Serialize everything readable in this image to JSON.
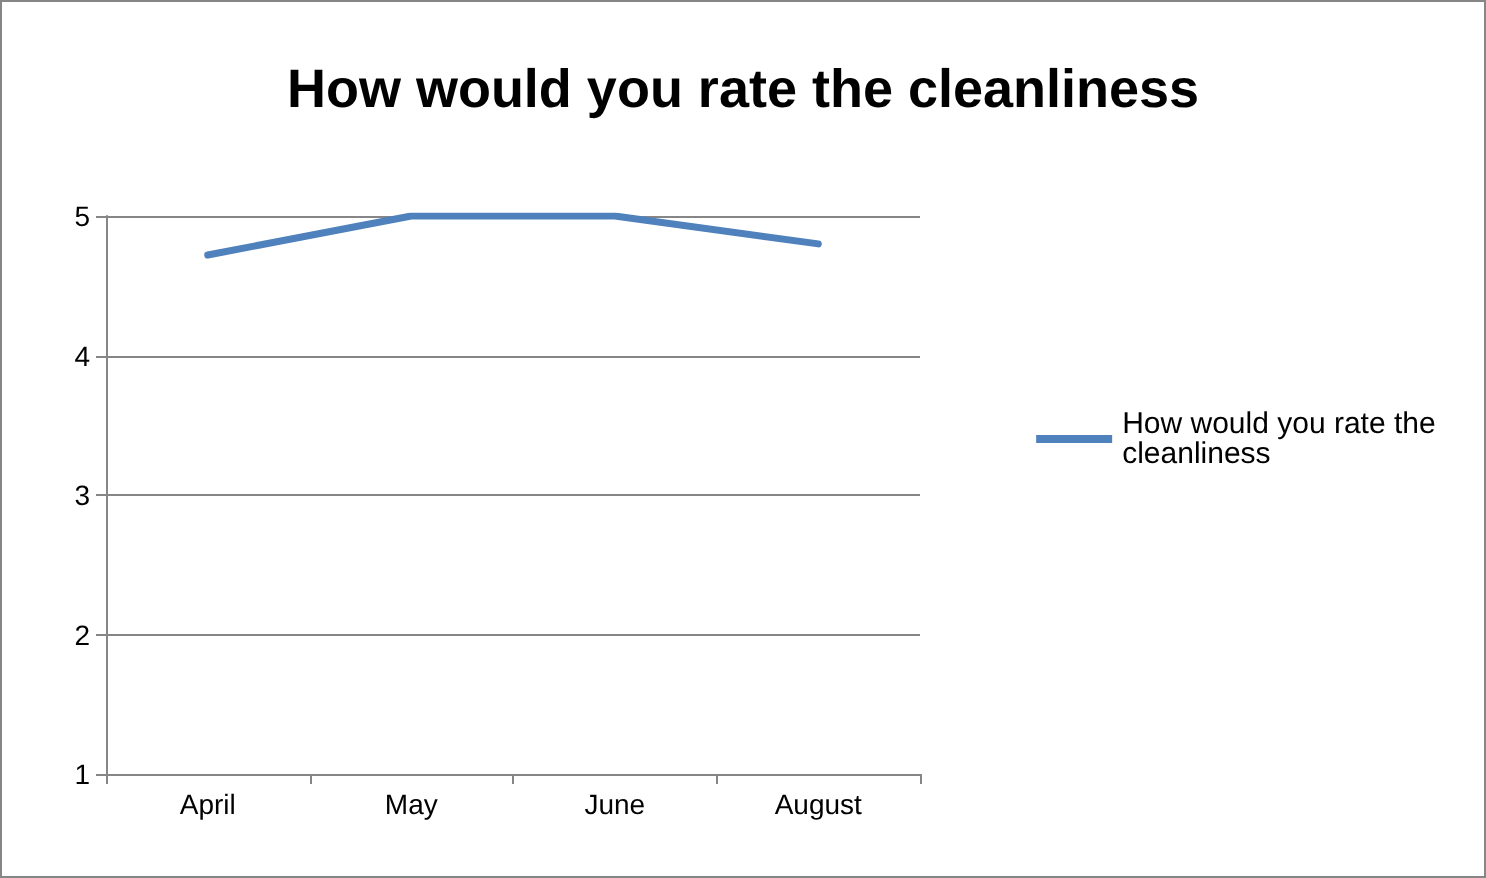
{
  "chart_data": {
    "type": "line",
    "title": "How would you rate the cleanliness",
    "categories": [
      "April",
      "May",
      "June",
      "August"
    ],
    "series": [
      {
        "name": "How would you rate the cleanliness",
        "color": "#4f81bd",
        "values": [
          4.72,
          5,
          5,
          4.8
        ]
      }
    ],
    "ylim": [
      1,
      5
    ],
    "yticks": [
      1,
      2,
      3,
      4,
      5
    ],
    "grid": "y",
    "legend": "right",
    "marker": "none",
    "line_style": "solid"
  }
}
